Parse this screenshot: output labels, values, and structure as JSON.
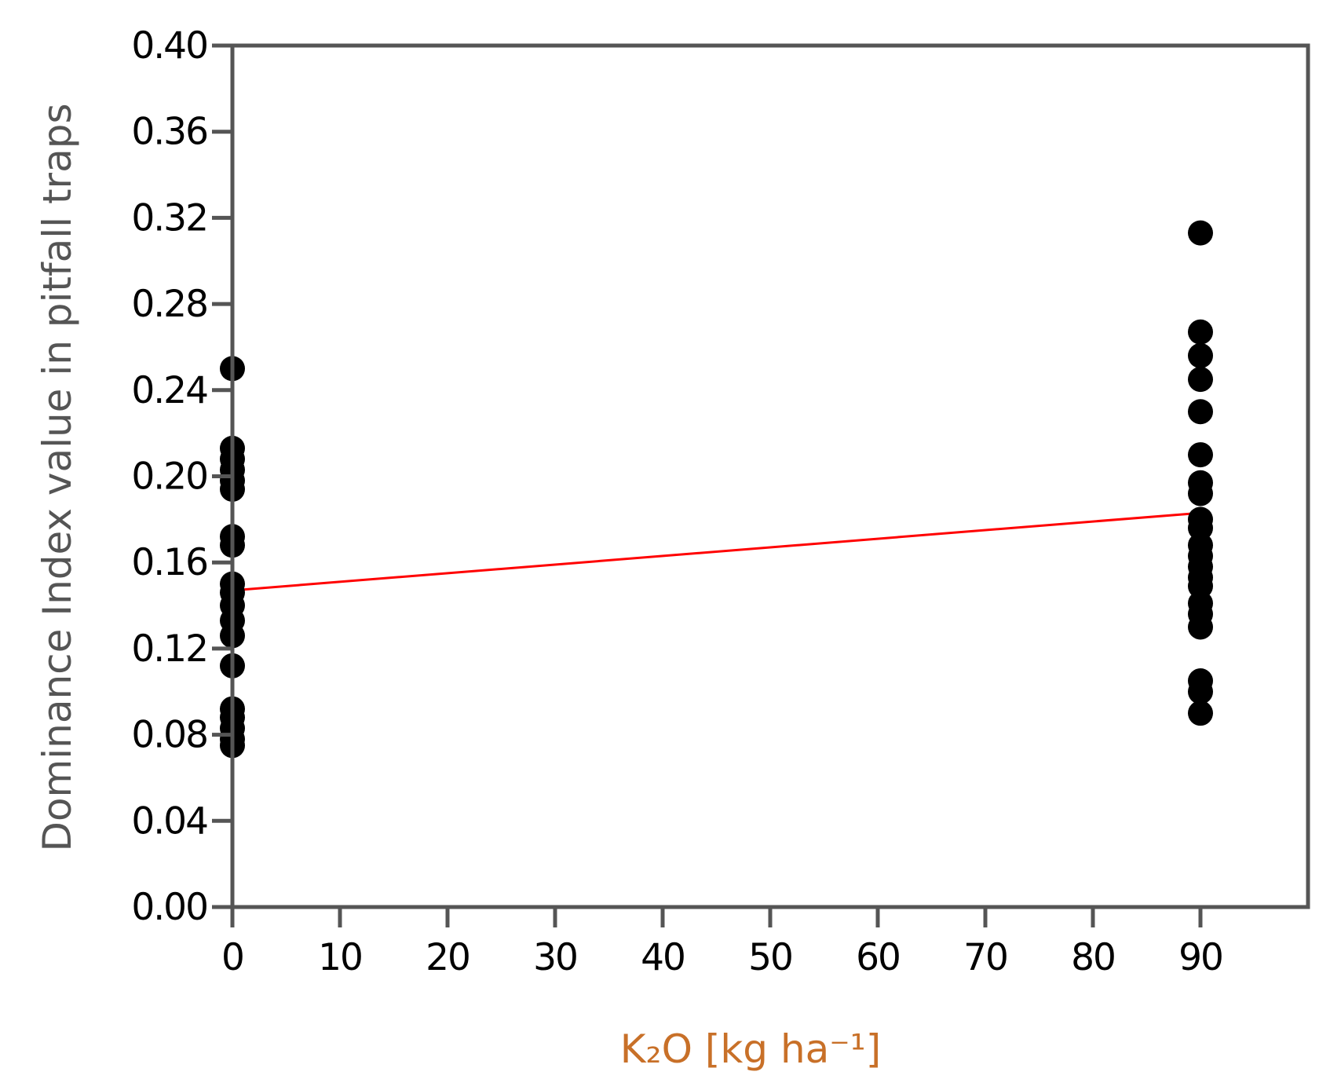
{
  "chart_data": {
    "type": "scatter",
    "xlabel": "K₂O [kg ha⁻¹]",
    "ylabel": "Dominance Index value in pitfall traps",
    "xlim": [
      0,
      100
    ],
    "ylim": [
      0,
      0.4
    ],
    "x_ticks": [
      0,
      10,
      20,
      30,
      40,
      50,
      60,
      70,
      80,
      90
    ],
    "x_tick_labels": [
      "0",
      "10",
      "20",
      "30",
      "40",
      "50",
      "60",
      "70",
      "80",
      "90"
    ],
    "y_ticks": [
      0,
      0.04,
      0.08,
      0.12,
      0.16,
      0.2,
      0.24,
      0.28,
      0.32,
      0.36,
      0.4
    ],
    "y_tick_labels": [
      "0.00",
      "0.04",
      "0.08",
      "0.12",
      "0.16",
      "0.20",
      "0.24",
      "0.28",
      "0.32",
      "0.36",
      "0.40"
    ],
    "grid": false,
    "legend": "none",
    "series": [
      {
        "color": "#000000",
        "points": [
          {
            "x": 0,
            "y": 0.25
          },
          {
            "x": 0,
            "y": 0.213
          },
          {
            "x": 0,
            "y": 0.208
          },
          {
            "x": 0,
            "y": 0.203
          },
          {
            "x": 0,
            "y": 0.198
          },
          {
            "x": 0,
            "y": 0.194
          },
          {
            "x": 0,
            "y": 0.172
          },
          {
            "x": 0,
            "y": 0.168
          },
          {
            "x": 0,
            "y": 0.15
          },
          {
            "x": 0,
            "y": 0.146
          },
          {
            "x": 0,
            "y": 0.14
          },
          {
            "x": 0,
            "y": 0.133
          },
          {
            "x": 0,
            "y": 0.126
          },
          {
            "x": 0,
            "y": 0.112
          },
          {
            "x": 0,
            "y": 0.092
          },
          {
            "x": 0,
            "y": 0.088
          },
          {
            "x": 0,
            "y": 0.083
          },
          {
            "x": 0,
            "y": 0.078
          },
          {
            "x": 0,
            "y": 0.075
          },
          {
            "x": 90,
            "y": 0.313
          },
          {
            "x": 90,
            "y": 0.267
          },
          {
            "x": 90,
            "y": 0.256
          },
          {
            "x": 90,
            "y": 0.245
          },
          {
            "x": 90,
            "y": 0.23
          },
          {
            "x": 90,
            "y": 0.21
          },
          {
            "x": 90,
            "y": 0.197
          },
          {
            "x": 90,
            "y": 0.192
          },
          {
            "x": 90,
            "y": 0.18
          },
          {
            "x": 90,
            "y": 0.176
          },
          {
            "x": 90,
            "y": 0.168
          },
          {
            "x": 90,
            "y": 0.163
          },
          {
            "x": 90,
            "y": 0.158
          },
          {
            "x": 90,
            "y": 0.153
          },
          {
            "x": 90,
            "y": 0.149
          },
          {
            "x": 90,
            "y": 0.141
          },
          {
            "x": 90,
            "y": 0.136
          },
          {
            "x": 90,
            "y": 0.13
          },
          {
            "x": 90,
            "y": 0.105
          },
          {
            "x": 90,
            "y": 0.1
          },
          {
            "x": 90,
            "y": 0.09
          }
        ]
      }
    ],
    "fit_line": {
      "color": "#ff0000",
      "x": [
        0,
        90
      ],
      "y": [
        0.147,
        0.183
      ]
    },
    "colors": {
      "axes": "#555555",
      "xlabel": "#c87028",
      "ylabel": "#555555"
    }
  }
}
